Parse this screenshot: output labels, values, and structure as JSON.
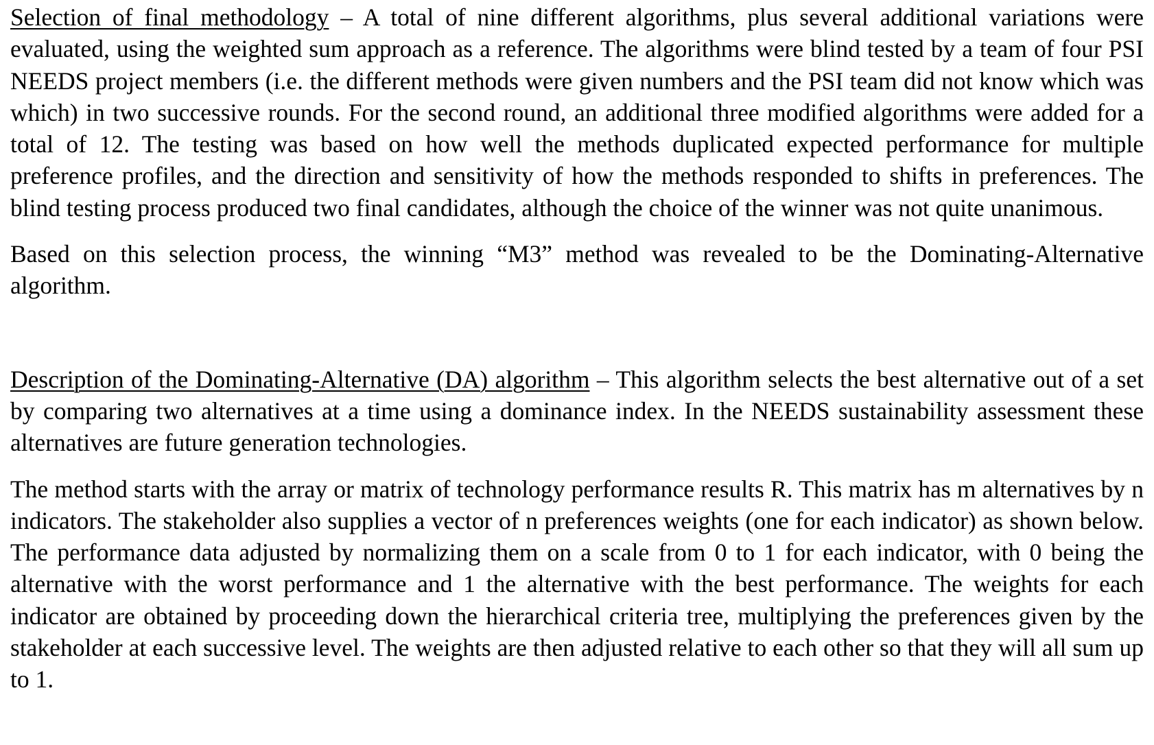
{
  "section1": {
    "heading": "Selection of final methodology",
    "dash": " – ",
    "paragraph1": "A total of nine different algorithms, plus several additional variations were evaluated, using the weighted sum approach as a reference.  The algorithms were blind tested by a team of four PSI NEEDS project members (i.e. the different methods were given numbers and the PSI team did not know which was which) in two successive rounds.  For the second round, an additional three modified algorithms were added for a total of 12.  The testing was based on how well the methods duplicated expected performance for multiple preference profiles, and the direction and sensitivity of how the methods responded to shifts in preferences.  The blind testing process produced two final candidates, although the choice of the winner was not quite unanimous.",
    "paragraph2": "Based on this selection process, the winning “M3” method was revealed to be the Dominating-Alternative algorithm."
  },
  "section2": {
    "heading": "Description of the Dominating-Alternative (DA) algorithm",
    "dash": " – ",
    "paragraph1": "This algorithm selects the best alternative out of a set by comparing two alternatives at a time using a dominance index. In the NEEDS sustainability assessment these alternatives are future generation technologies.",
    "paragraph2": "The method starts with the array or matrix of technology performance results R.  This matrix has m alternatives by n indicators.  The stakeholder also supplies a vector of n preferences weights (one for each indicator) as shown below. The performance data adjusted by normalizing them on a scale from 0 to 1 for each indicator, with 0 being the alternative with the worst performance and 1 the alternative with the best performance.  The weights for each indicator are obtained by proceeding down the hierarchical criteria tree, multiplying the preferences given by the stakeholder at each successive level.  The weights are then adjusted relative to each other so that they will all sum up to 1."
  }
}
